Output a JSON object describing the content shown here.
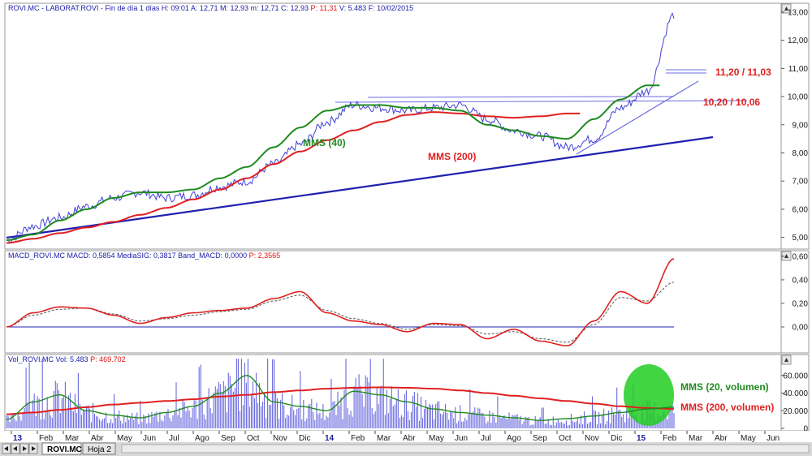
{
  "panels": {
    "price_header": {
      "prefix": "ROVI.MC - LABORAT.ROVI - Fin de día 1 días",
      "stats": "H: 09:01  A: 12,71  M: 12,93  m: 12,71  C: 12,93",
      "p": "P: 11,31",
      "vf": "V: 5.483  F: 10/02/2015"
    },
    "macd_header": {
      "text": "MACD_ROVI.MC  MACD: 0,5854  MediaSIG: 0,3817  Band_MACD: 0,0000",
      "p": "P: 2,3565"
    },
    "vol_header": {
      "text": "Vol_ROVI.MC  Vol: 5.483",
      "p": "P: 469.702"
    }
  },
  "annotations": {
    "mms40": "MMS (40)",
    "mms200": "MMS (200)",
    "level_high": "11,20 / 11,03",
    "level_low": "10,20 / 10,06",
    "vol20": "MMS (20, volumen)",
    "vol200": "MMS (200, volumen)"
  },
  "tabs": {
    "sheet1": "ROVI.MC",
    "sheet2": "Hoja 2"
  },
  "colors": {
    "price": "#4040d8",
    "mms40": "#1f8a1f",
    "mms200": "#e02020",
    "trend": "#2020b0",
    "macd": "#e02020",
    "signal": "#555555",
    "volume_bars": "#6a6ae0",
    "highlight": "#22cc22"
  },
  "chart_data": [
    {
      "type": "line",
      "name": "price",
      "ylim": [
        4.7,
        13.2
      ],
      "yticks": [
        "5,00",
        "6,00",
        "7,00",
        "8,00",
        "9,00",
        "10,00",
        "11,00",
        "12,00",
        "13,00"
      ],
      "ytick_values": [
        5,
        6,
        7,
        8,
        9,
        10,
        11,
        12,
        13
      ],
      "x_labels": [
        "13",
        "Feb",
        "Mar",
        "Abr",
        "May",
        "Jun",
        "Jul",
        "Ago",
        "Sep",
        "Oct",
        "Nov",
        "Dic",
        "14",
        "Feb",
        "Mar",
        "Abr",
        "May",
        "Jun",
        "Jul",
        "Ago",
        "Sep",
        "Oct",
        "Nov",
        "Dic",
        "15",
        "Feb",
        "Mar",
        "Abr",
        "May",
        "Jun"
      ],
      "series": [
        {
          "name": "",
          "values": [
            4.9,
            5.4,
            5.7,
            6.1,
            6.4,
            6.6,
            6.4,
            6.5,
            6.8,
            7.0,
            7.6,
            8.3,
            9.1,
            9.7,
            9.6,
            9.5,
            9.6,
            9.7,
            9.2,
            8.8,
            8.6,
            8.2,
            8.5,
            9.6,
            10.2,
            12.9
          ]
        },
        {
          "name": "MMS (40)",
          "values": [
            4.9,
            5.1,
            5.6,
            6.0,
            6.4,
            6.6,
            6.6,
            6.7,
            7.1,
            7.5,
            8.2,
            8.9,
            9.5,
            9.7,
            9.7,
            9.6,
            9.6,
            9.5,
            9.0,
            8.8,
            8.6,
            8.5,
            9.2,
            9.9,
            10.4,
            null
          ]
        },
        {
          "name": "MMS (200)",
          "values": [
            4.8,
            4.95,
            5.15,
            5.35,
            5.55,
            5.8,
            6.05,
            6.35,
            6.7,
            7.1,
            7.6,
            8.05,
            8.45,
            8.8,
            9.1,
            9.35,
            9.45,
            9.4,
            9.3,
            9.25,
            9.3,
            9.4,
            null,
            null,
            null,
            null
          ]
        }
      ]
    },
    {
      "type": "line",
      "name": "macd",
      "ylim": [
        -0.2,
        0.62
      ],
      "yticks": [
        "0,00",
        "0,20",
        "0,40",
        "0,60"
      ],
      "ytick_values": [
        0,
        0.2,
        0.4,
        0.6
      ],
      "series": [
        {
          "name": "",
          "values": [
            0.0,
            0.12,
            0.17,
            0.16,
            0.1,
            0.03,
            0.08,
            0.12,
            0.14,
            0.16,
            0.24,
            0.3,
            0.12,
            0.05,
            0.02,
            -0.04,
            0.03,
            0.02,
            -0.1,
            -0.02,
            -0.12,
            -0.16,
            0.05,
            0.3,
            0.2,
            0.58
          ]
        },
        {
          "name": "",
          "values": [
            0.0,
            0.1,
            0.15,
            0.16,
            0.11,
            0.05,
            0.07,
            0.1,
            0.13,
            0.15,
            0.22,
            0.27,
            0.14,
            0.07,
            0.03,
            -0.02,
            0.02,
            0.01,
            -0.06,
            -0.04,
            -0.1,
            -0.13,
            0.02,
            0.25,
            0.22,
            0.38
          ]
        }
      ]
    },
    {
      "type": "bar",
      "name": "volume",
      "ylim": [
        0,
        80000
      ],
      "yticks": [
        "0",
        "20.000",
        "40.000",
        "60.000"
      ],
      "ytick_values": [
        0,
        20000,
        40000,
        60000
      ],
      "series": [
        {
          "name": "MMS (20, volumen)",
          "values": [
            10000,
            30000,
            38000,
            20000,
            15000,
            12000,
            18000,
            25000,
            40000,
            60000,
            30000,
            25000,
            20000,
            42000,
            38000,
            30000,
            22000,
            18000,
            15000,
            12000,
            9000,
            11000,
            14000,
            18000,
            22000,
            24000
          ]
        },
        {
          "name": "MMS (200, volumen)",
          "values": [
            16000,
            18000,
            21000,
            24000,
            27000,
            29000,
            31000,
            33000,
            36000,
            38000,
            41000,
            43000,
            45000,
            46000,
            46500,
            46000,
            45000,
            43000,
            40000,
            37000,
            34000,
            31000,
            28000,
            25000,
            23000,
            22000
          ]
        }
      ]
    }
  ]
}
